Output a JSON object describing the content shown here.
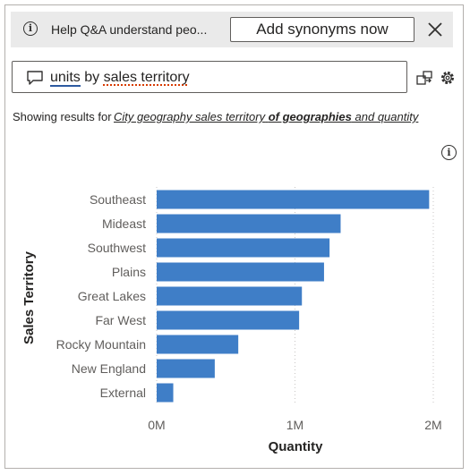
{
  "banner": {
    "text": "Help Q&A understand peo...",
    "button_label": "Add synonyms now"
  },
  "qa": {
    "query_word_1": "units",
    "query_word_2": "by",
    "query_word_3": "sales territory"
  },
  "restatement": {
    "label": "Showing results for",
    "part_1": "City geography sales territory",
    "part_2": "of geographies",
    "part_3": "and quantity"
  },
  "colors": {
    "bar": "#3f7ec7",
    "banner_bg": "#eaeaea"
  },
  "chart_data": {
    "type": "bar",
    "orientation": "horizontal",
    "categories": [
      "Southeast",
      "Mideast",
      "Southwest",
      "Plains",
      "Great Lakes",
      "Far West",
      "Rocky Mountain",
      "New England",
      "External"
    ],
    "values": [
      1970000,
      1330000,
      1250000,
      1210000,
      1050000,
      1030000,
      590000,
      420000,
      120000
    ],
    "xlabel": "Quantity",
    "ylabel": "Sales Territory",
    "xlim": [
      0,
      2000000
    ],
    "x_ticks": [
      "0M",
      "1M",
      "2M"
    ],
    "grid": true
  }
}
